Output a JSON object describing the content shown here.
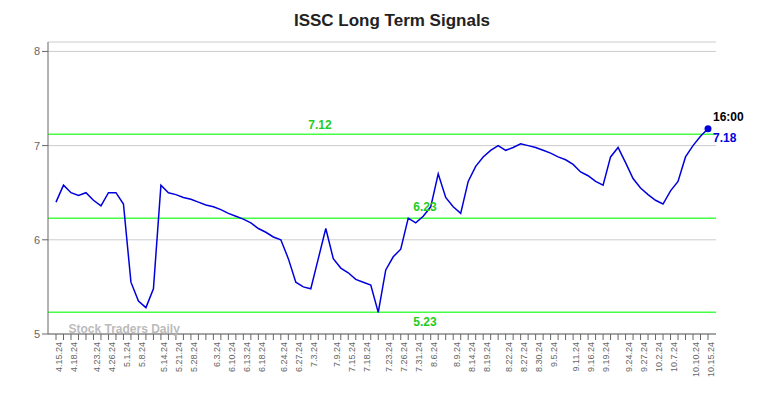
{
  "chart_data": {
    "type": "line",
    "title": "ISSC Long Term Signals",
    "categories": [
      "4.15.24",
      null,
      "4.18.24",
      null,
      null,
      "4.23.24",
      null,
      "4.26.24",
      null,
      "5.1.24",
      null,
      "5.8.24",
      null,
      null,
      "5.14.24",
      null,
      "5.21.24",
      null,
      "5.28.24",
      null,
      null,
      "6.3.24",
      null,
      "6.10.24",
      null,
      "6.13.24",
      null,
      "6.18.24",
      null,
      null,
      "6.24.24",
      null,
      "6.27.24",
      null,
      "7.3.24",
      null,
      null,
      "7.9.24",
      null,
      "7.15.24",
      null,
      "7.18.24",
      null,
      null,
      "7.23.24",
      null,
      "7.26.24",
      null,
      "7.31.24",
      null,
      "8.6.24",
      null,
      null,
      "8.9.24",
      null,
      "8.14.24",
      null,
      "8.19.24",
      null,
      null,
      "8.22.24",
      null,
      "8.27.24",
      null,
      "8.30.24",
      null,
      "9.5.24",
      null,
      null,
      "9.11.24",
      null,
      "9.16.24",
      null,
      "9.19.24",
      null,
      null,
      "9.24.24",
      null,
      "9.27.24",
      null,
      "10.2.24",
      null,
      "10.7.24",
      null,
      null,
      "10.10.24",
      null,
      "10.15.24"
    ],
    "values": [
      6.4,
      6.58,
      6.5,
      6.47,
      6.5,
      6.42,
      6.36,
      6.5,
      6.5,
      6.38,
      5.55,
      5.35,
      5.28,
      5.48,
      6.58,
      6.5,
      6.48,
      6.45,
      6.43,
      6.4,
      6.37,
      6.35,
      6.32,
      6.28,
      6.25,
      6.22,
      6.18,
      6.12,
      6.08,
      6.03,
      6.0,
      5.8,
      5.55,
      5.5,
      5.48,
      5.8,
      6.12,
      5.8,
      5.7,
      5.65,
      5.58,
      5.55,
      5.52,
      5.23,
      5.68,
      5.82,
      5.9,
      6.23,
      6.18,
      6.25,
      6.35,
      6.7,
      6.45,
      6.35,
      6.28,
      6.62,
      6.78,
      6.88,
      6.95,
      7.0,
      6.95,
      6.98,
      7.02,
      7.0,
      6.98,
      6.95,
      6.92,
      6.88,
      6.85,
      6.8,
      6.72,
      6.68,
      6.62,
      6.58,
      6.88,
      6.98,
      6.82,
      6.65,
      6.55,
      6.48,
      6.42,
      6.38,
      6.52,
      6.62,
      6.88,
      7.0,
      7.1,
      7.18
    ],
    "color": "#0000dd",
    "ylim": [
      5.0,
      8.1
    ],
    "yticks": [
      5,
      6,
      7,
      8
    ],
    "grid": true,
    "reference_lines": [
      {
        "y": 5.23,
        "color": "#44ff44"
      },
      {
        "y": 6.23,
        "color": "#44ff44"
      },
      {
        "y": 7.12,
        "color": "#44ff44"
      }
    ],
    "annotations": [
      {
        "text": "16:00",
        "x": 87,
        "y": 7.31,
        "color": "#000000"
      },
      {
        "text": "7.18",
        "x": 87,
        "y": 7.08,
        "color": "#0000dd"
      },
      {
        "text": "7.12",
        "x": 33,
        "y": 7.22,
        "color": "#22cc22"
      },
      {
        "text": "6.23",
        "x": 47,
        "y": 6.35,
        "color": "#22cc22"
      },
      {
        "text": "5.23",
        "x": 47,
        "y": 5.13,
        "color": "#22cc22"
      },
      {
        "text": "Stock Traders Daily",
        "x": 1,
        "y": 5.06,
        "color": "#bbbbbb"
      }
    ]
  }
}
